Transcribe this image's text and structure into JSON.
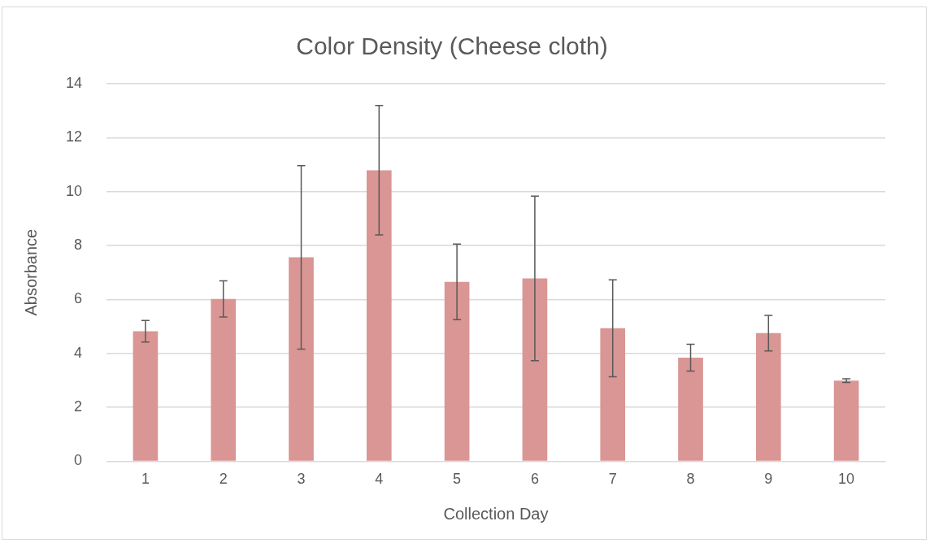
{
  "chart_data": {
    "type": "bar",
    "title": "Color Density (Cheese cloth)",
    "xlabel": "Collection Day",
    "ylabel": "Absorbance",
    "categories": [
      "1",
      "2",
      "3",
      "4",
      "5",
      "6",
      "7",
      "8",
      "9",
      "10"
    ],
    "values": [
      4.82,
      6.02,
      7.56,
      10.79,
      6.65,
      6.78,
      4.93,
      3.84,
      4.75,
      2.99
    ],
    "errors": [
      0.4,
      0.67,
      3.4,
      2.4,
      1.4,
      3.05,
      1.8,
      0.5,
      0.66,
      0.07
    ],
    "color": "#d99694",
    "ylim": [
      0,
      14
    ],
    "yticks": [
      0,
      2,
      4,
      6,
      8,
      10,
      12,
      14
    ],
    "grid": "y",
    "legend": false
  }
}
